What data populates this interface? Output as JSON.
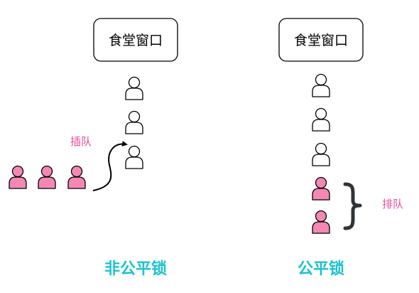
{
  "left_panel": {
    "window_label": "食堂窗口",
    "queue": [
      "white",
      "white",
      "white"
    ],
    "cutters": [
      "pink",
      "pink",
      "pink"
    ],
    "action_label": "插队",
    "caption": "非公平锁"
  },
  "right_panel": {
    "window_label": "食堂窗口",
    "queue": [
      "white",
      "white",
      "white",
      "pink",
      "pink"
    ],
    "bracket_label": "排队",
    "caption": "公平锁"
  },
  "colors": {
    "person_white": "#ffffff",
    "person_pink": "#f487b6",
    "outline": "#000000",
    "accent_text": "#e84c9a",
    "caption": "#19c3cf",
    "bracket": "#2e3436"
  },
  "icons": [
    "person-icon",
    "curved-arrow-icon",
    "right-brace-icon"
  ]
}
